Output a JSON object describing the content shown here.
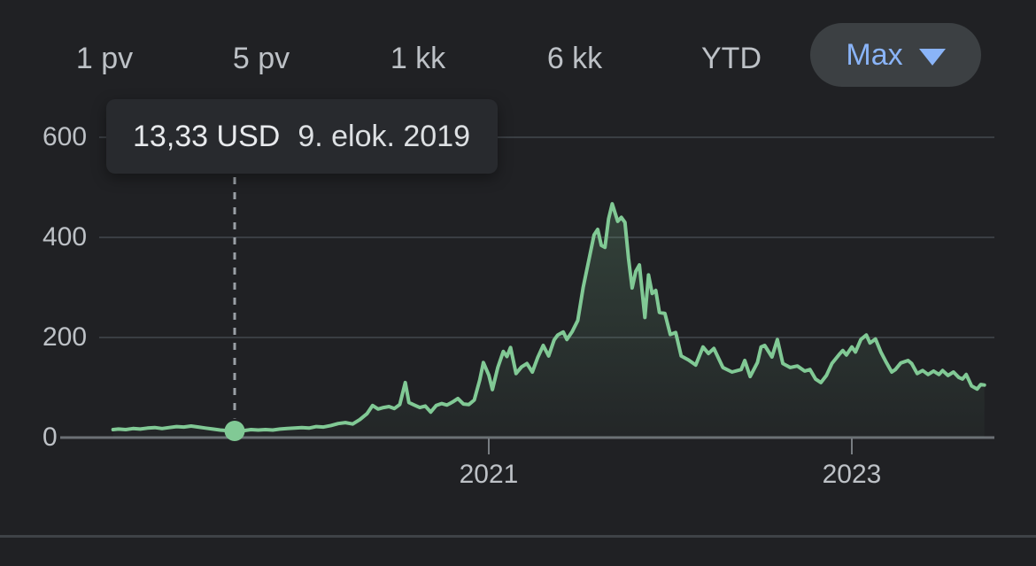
{
  "range_bar": {
    "buttons": [
      {
        "label": "1 pv"
      },
      {
        "label": "5 pv"
      },
      {
        "label": "1 kk"
      },
      {
        "label": "6 kk"
      },
      {
        "label": "YTD"
      }
    ],
    "selected": {
      "label": "Max"
    }
  },
  "tooltip": {
    "value": "13,33 USD",
    "date": "9. elok. 2019"
  },
  "colors": {
    "background": "#202124",
    "line": "#81c995",
    "marker": "#81c995",
    "selected_range_text": "#8ab4f8",
    "pill_background": "#3c4043",
    "grid": "#3a3e43",
    "baseline": "#6b7075",
    "axis_text": "#bdc1c6",
    "tooltip_background": "#282a2e",
    "tooltip_text": "#e8eaed",
    "crosshair": "#9aa0a6"
  },
  "chart_data": {
    "type": "area",
    "title": "",
    "xlabel": "",
    "ylabel": "",
    "grid": true,
    "x_axis": {
      "range": [
        2018.93,
        2023.73
      ],
      "ticks": [
        {
          "value": 2021,
          "label": "2021"
        },
        {
          "value": 2023,
          "label": "2023"
        }
      ]
    },
    "y_axis": {
      "range": [
        0,
        600
      ],
      "ticks": [
        {
          "value": 0,
          "label": "0"
        },
        {
          "value": 200,
          "label": "200"
        },
        {
          "value": 400,
          "label": "400"
        },
        {
          "value": 600,
          "label": "600"
        }
      ]
    },
    "marker": {
      "year": 2019.6,
      "value": 13.33,
      "price_label": "13,33 USD",
      "date_label": "9. elok. 2019"
    },
    "series": [
      {
        "name": "price-usd",
        "points": [
          [
            2018.93,
            16
          ],
          [
            2018.96,
            17
          ],
          [
            2019.0,
            16
          ],
          [
            2019.04,
            18
          ],
          [
            2019.08,
            17
          ],
          [
            2019.12,
            19
          ],
          [
            2019.16,
            20
          ],
          [
            2019.2,
            18
          ],
          [
            2019.24,
            20
          ],
          [
            2019.28,
            22
          ],
          [
            2019.32,
            21
          ],
          [
            2019.36,
            23
          ],
          [
            2019.4,
            21
          ],
          [
            2019.44,
            19
          ],
          [
            2019.48,
            17
          ],
          [
            2019.52,
            15
          ],
          [
            2019.56,
            14
          ],
          [
            2019.6,
            13.33
          ],
          [
            2019.65,
            14
          ],
          [
            2019.69,
            16
          ],
          [
            2019.73,
            15
          ],
          [
            2019.77,
            16
          ],
          [
            2019.81,
            15
          ],
          [
            2019.85,
            17
          ],
          [
            2019.89,
            18
          ],
          [
            2019.93,
            19
          ],
          [
            2019.97,
            20
          ],
          [
            2020.01,
            19
          ],
          [
            2020.05,
            22
          ],
          [
            2020.09,
            21
          ],
          [
            2020.13,
            24
          ],
          [
            2020.17,
            28
          ],
          [
            2020.21,
            30
          ],
          [
            2020.25,
            27
          ],
          [
            2020.29,
            36
          ],
          [
            2020.33,
            48
          ],
          [
            2020.36,
            64
          ],
          [
            2020.39,
            57
          ],
          [
            2020.42,
            60
          ],
          [
            2020.45,
            62
          ],
          [
            2020.48,
            58
          ],
          [
            2020.51,
            66
          ],
          [
            2020.54,
            110
          ],
          [
            2020.56,
            70
          ],
          [
            2020.59,
            65
          ],
          [
            2020.62,
            60
          ],
          [
            2020.65,
            63
          ],
          [
            2020.68,
            51
          ],
          [
            2020.71,
            64
          ],
          [
            2020.74,
            68
          ],
          [
            2020.77,
            65
          ],
          [
            2020.8,
            71
          ],
          [
            2020.83,
            78
          ],
          [
            2020.86,
            67
          ],
          [
            2020.89,
            66
          ],
          [
            2020.92,
            75
          ],
          [
            2020.95,
            115
          ],
          [
            2020.97,
            150
          ],
          [
            2021.0,
            125
          ],
          [
            2021.02,
            96
          ],
          [
            2021.05,
            140
          ],
          [
            2021.08,
            172
          ],
          [
            2021.1,
            162
          ],
          [
            2021.12,
            180
          ],
          [
            2021.15,
            128
          ],
          [
            2021.18,
            141
          ],
          [
            2021.21,
            148
          ],
          [
            2021.24,
            131
          ],
          [
            2021.27,
            160
          ],
          [
            2021.3,
            184
          ],
          [
            2021.33,
            163
          ],
          [
            2021.36,
            195
          ],
          [
            2021.38,
            205
          ],
          [
            2021.41,
            211
          ],
          [
            2021.43,
            196
          ],
          [
            2021.46,
            212
          ],
          [
            2021.49,
            234
          ],
          [
            2021.52,
            300
          ],
          [
            2021.55,
            352
          ],
          [
            2021.58,
            405
          ],
          [
            2021.6,
            416
          ],
          [
            2021.62,
            384
          ],
          [
            2021.64,
            380
          ],
          [
            2021.66,
            437
          ],
          [
            2021.68,
            467
          ],
          [
            2021.71,
            432
          ],
          [
            2021.73,
            440
          ],
          [
            2021.75,
            430
          ],
          [
            2021.77,
            358
          ],
          [
            2021.79,
            299
          ],
          [
            2021.81,
            332
          ],
          [
            2021.83,
            345
          ],
          [
            2021.86,
            240
          ],
          [
            2021.88,
            325
          ],
          [
            2021.9,
            288
          ],
          [
            2021.92,
            294
          ],
          [
            2021.94,
            250
          ],
          [
            2021.97,
            248
          ],
          [
            2022.0,
            206
          ],
          [
            2022.03,
            210
          ],
          [
            2022.06,
            163
          ],
          [
            2022.1,
            155
          ],
          [
            2022.14,
            145
          ],
          [
            2022.18,
            181
          ],
          [
            2022.21,
            168
          ],
          [
            2022.24,
            178
          ],
          [
            2022.29,
            140
          ],
          [
            2022.34,
            131
          ],
          [
            2022.39,
            136
          ],
          [
            2022.41,
            154
          ],
          [
            2022.44,
            122
          ],
          [
            2022.48,
            150
          ],
          [
            2022.5,
            181
          ],
          [
            2022.52,
            184
          ],
          [
            2022.56,
            161
          ],
          [
            2022.59,
            196
          ],
          [
            2022.62,
            148
          ],
          [
            2022.66,
            140
          ],
          [
            2022.7,
            143
          ],
          [
            2022.74,
            133
          ],
          [
            2022.77,
            136
          ],
          [
            2022.8,
            117
          ],
          [
            2022.83,
            110
          ],
          [
            2022.86,
            124
          ],
          [
            2022.89,
            148
          ],
          [
            2022.93,
            166
          ],
          [
            2022.95,
            174
          ],
          [
            2022.97,
            165
          ],
          [
            2023.0,
            181
          ],
          [
            2023.02,
            171
          ],
          [
            2023.05,
            196
          ],
          [
            2023.08,
            205
          ],
          [
            2023.1,
            189
          ],
          [
            2023.13,
            197
          ],
          [
            2023.16,
            171
          ],
          [
            2023.19,
            150
          ],
          [
            2023.22,
            131
          ],
          [
            2023.24,
            136
          ],
          [
            2023.27,
            149
          ],
          [
            2023.31,
            154
          ],
          [
            2023.33,
            148
          ],
          [
            2023.36,
            128
          ],
          [
            2023.39,
            134
          ],
          [
            2023.42,
            126
          ],
          [
            2023.45,
            133
          ],
          [
            2023.48,
            126
          ],
          [
            2023.5,
            134
          ],
          [
            2023.53,
            124
          ],
          [
            2023.56,
            131
          ],
          [
            2023.59,
            120
          ],
          [
            2023.61,
            117
          ],
          [
            2023.63,
            126
          ],
          [
            2023.66,
            103
          ],
          [
            2023.69,
            97
          ],
          [
            2023.71,
            106
          ],
          [
            2023.73,
            105
          ]
        ]
      }
    ]
  }
}
